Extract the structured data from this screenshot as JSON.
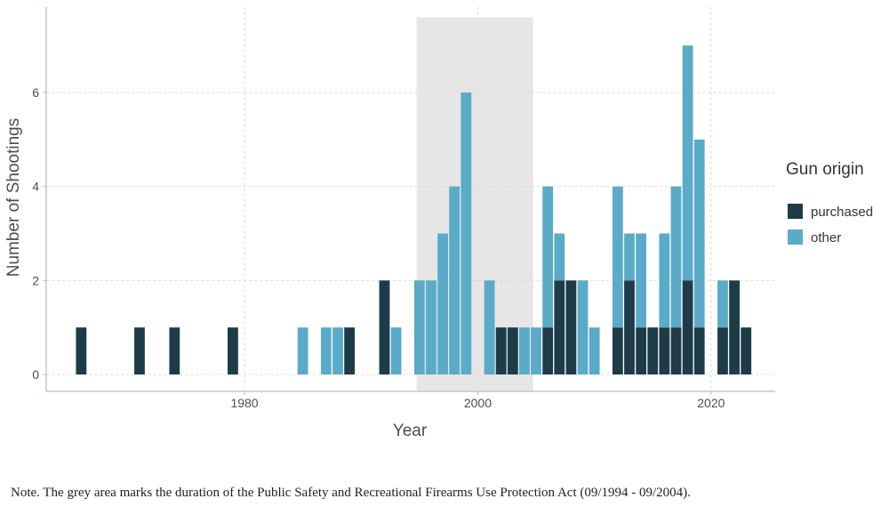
{
  "chart_data": {
    "type": "bar",
    "stacked": true,
    "xlabel": "Year",
    "ylabel": "Number of Shootings",
    "xticks": [
      1980,
      2000,
      2020
    ],
    "yticks": [
      0,
      2,
      4,
      6
    ],
    "xlim": [
      1963,
      2025.5
    ],
    "ylim": [
      0,
      7.6
    ],
    "grid": true,
    "legend": {
      "title": "Gun origin",
      "placement": "right",
      "entries": [
        "purchased",
        "other"
      ]
    },
    "colors": {
      "purchased": "#1e3c48",
      "other": "#5aabc7",
      "shade": "#e6e6e6"
    },
    "shaded_period": [
      1994.75,
      2004.75
    ],
    "note": "Note. The grey area marks the duration of the Public Safety and Recreational Firearms Use Protection Act (09/1994 - 09/2004).",
    "x": [
      1966,
      1971,
      1974,
      1979,
      1985,
      1987,
      1988,
      1989,
      1992,
      1993,
      1995,
      1996,
      1997,
      1998,
      1999,
      2001,
      2002,
      2003,
      2004,
      2005,
      2006,
      2007,
      2008,
      2009,
      2010,
      2012,
      2013,
      2014,
      2015,
      2016,
      2017,
      2018,
      2019,
      2021,
      2022,
      2023
    ],
    "series": [
      {
        "name": "purchased",
        "values": [
          1,
          1,
          1,
          1,
          0,
          0,
          0,
          1,
          2,
          0,
          0,
          0,
          0,
          0,
          0,
          0,
          1,
          1,
          0,
          0,
          1,
          2,
          2,
          0,
          0,
          1,
          2,
          1,
          1,
          1,
          1,
          2,
          1,
          1,
          2,
          1
        ]
      },
      {
        "name": "other",
        "values": [
          0,
          0,
          0,
          0,
          1,
          1,
          1,
          0,
          0,
          1,
          2,
          2,
          3,
          4,
          6,
          2,
          0,
          0,
          1,
          1,
          3,
          1,
          0,
          2,
          1,
          3,
          1,
          2,
          0,
          2,
          3,
          5,
          4,
          1,
          0,
          0
        ]
      }
    ]
  }
}
